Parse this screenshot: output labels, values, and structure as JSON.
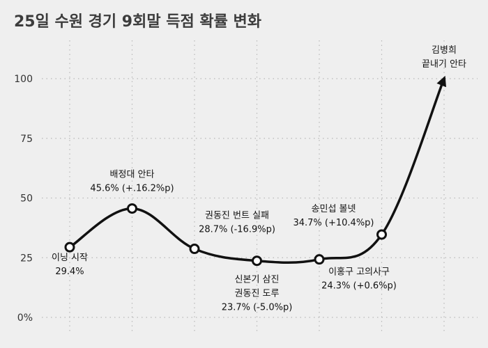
{
  "chart_data": {
    "type": "line",
    "title": "25일 수원 경기 9회말 득점 확률 변화",
    "xlabel": "",
    "ylabel": "",
    "ylim": [
      -3,
      110
    ],
    "y_ticks": [
      0,
      25,
      50,
      75,
      100
    ],
    "y_tick_labels": [
      "0%",
      "25",
      "50",
      "75",
      "100"
    ],
    "grid": true,
    "series": [
      {
        "name": "득점 확률",
        "x": [
          1,
          2,
          3,
          4,
          5,
          6,
          7
        ],
        "values": [
          29.4,
          45.6,
          28.7,
          23.7,
          24.3,
          34.7,
          100
        ]
      }
    ],
    "points": [
      {
        "lines": [
          "이닝 시작",
          "29.4%"
        ]
      },
      {
        "lines": [
          "배정대 안타",
          "45.6% (+.16.2%p)"
        ]
      },
      {
        "lines": [
          "권동진 번트 실패",
          "28.7% (-16.9%p)"
        ]
      },
      {
        "lines": [
          "신본기 삼진",
          "권동진 도루",
          "23.7% (-5.0%p)"
        ]
      },
      {
        "lines": [
          "이홍구 고의사구",
          "24.3% (+0.6%p)"
        ]
      },
      {
        "lines": [
          "송민섭 볼넷",
          "34.7% (+10.4%p)"
        ]
      },
      {
        "lines": [
          "김병희",
          "끝내기 안타"
        ]
      }
    ]
  }
}
